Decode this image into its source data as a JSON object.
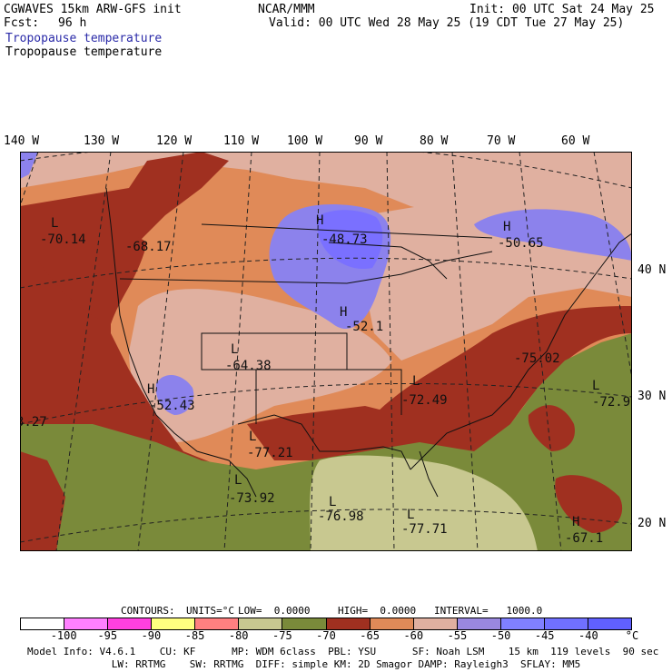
{
  "header": {
    "model": "CGWAVES 15km ARW-GFS init",
    "fcst_label": "Fcst:",
    "fcst_value": "96 h",
    "org": "NCAR/MMM",
    "init": "Init: 00 UTC Sat 24 May 25",
    "valid": "Valid: 00 UTC Wed 28 May 25 (19 CDT Tue 27 May 25)",
    "field_blue": "Tropopause temperature",
    "field_black": "Tropopause temperature"
  },
  "lon_labels": [
    "140 W",
    "130 W",
    "120 W",
    "110 W",
    "100 W",
    "90 W",
    "80 W",
    "70 W",
    "60 W"
  ],
  "lat_labels": [
    "40 N",
    "30 N",
    "20 N"
  ],
  "map_labels": [
    {
      "letter": "L",
      "value": "-70.14"
    },
    {
      "letter": "",
      "value": "-68.17"
    },
    {
      "letter": "H",
      "value": "-48.73"
    },
    {
      "letter": "H",
      "value": "-50.65"
    },
    {
      "letter": "H",
      "value": "-52.1"
    },
    {
      "letter": "L",
      "value": "-64.38"
    },
    {
      "letter": "H",
      "value": "-52.43"
    },
    {
      "letter": "",
      "value": "-75.02"
    },
    {
      "letter": "L",
      "value": "-72.49"
    },
    {
      "letter": "L",
      "value": "-72.9"
    },
    {
      "letter": "",
      "value": "3.27"
    },
    {
      "letter": "L",
      "value": "-77.21"
    },
    {
      "letter": "L",
      "value": "-73.92"
    },
    {
      "letter": "L",
      "value": "-76.98"
    },
    {
      "letter": "L",
      "value": "-77.71"
    },
    {
      "letter": "H",
      "value": "-67.1"
    }
  ],
  "contours": {
    "label": "CONTOURS:",
    "units": "UNITS=°C",
    "low": "LOW=  0.0000",
    "high": "HIGH=  0.0000",
    "interval": "INTERVAL=   1000.0"
  },
  "legend": {
    "colors": [
      "#ffffff",
      "#ff80ff",
      "#ff40e0",
      "#ffff80",
      "#ff8080",
      "#c8c890",
      "#7a8a3a",
      "#a03020",
      "#e08a58",
      "#e0b0a0",
      "#9a88e0",
      "#8080ff",
      "#7070ff",
      "#6060ff"
    ],
    "ticks": [
      "-100",
      "-95",
      "-90",
      "-85",
      "-80",
      "-75",
      "-70",
      "-65",
      "-60",
      "-55",
      "-50",
      "-45",
      "-40",
      "°C"
    ]
  },
  "footer": {
    "line1": "Model Info: V4.6.1    CU: KF      MP: WDM 6class  PBL: YSU      SF: Noah LSM    15 km  119 levels  90 sec",
    "line2": "              LW: RRTMG    SW: RRTMG  DIFF: simple KM: 2D Smagor DAMP: Rayleigh3  SFLAY: MM5"
  }
}
